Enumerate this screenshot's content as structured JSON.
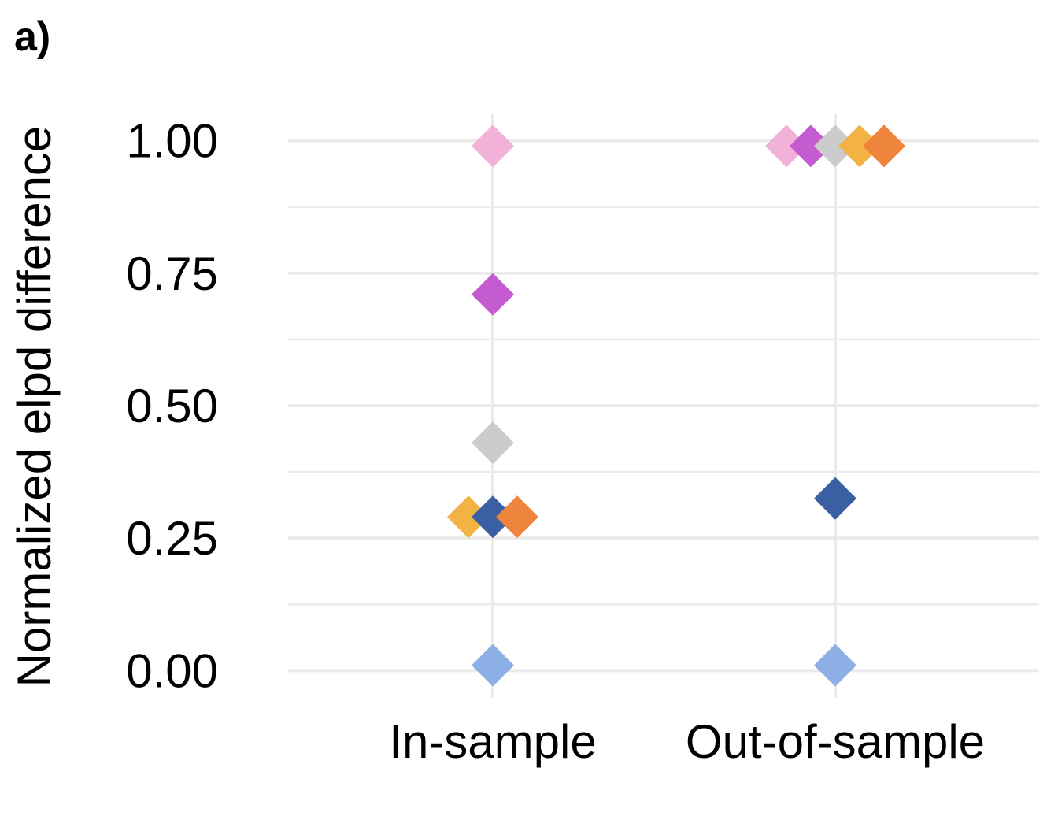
{
  "panel_label": "a)",
  "chart_data": {
    "type": "scatter",
    "title": "",
    "xlabel": "",
    "ylabel": "Normalized elpd difference",
    "categories": [
      "In-sample",
      "Out-of-sample"
    ],
    "ylim": [
      -0.05,
      1.05
    ],
    "yticks": [
      0.0,
      0.25,
      0.5,
      0.75,
      1.0
    ],
    "ytick_labels": [
      "0.00",
      "0.25",
      "0.50",
      "0.75",
      "1.00"
    ],
    "grid": true,
    "legend": "none",
    "marker": "diamond",
    "series": [
      {
        "color": "#f2b1d8",
        "values": [
          0.99,
          0.99
        ]
      },
      {
        "color": "#c45bd1",
        "values": [
          0.71,
          0.99
        ]
      },
      {
        "color": "#cccccc",
        "values": [
          0.43,
          0.99
        ]
      },
      {
        "color": "#f2b344",
        "values": [
          0.29,
          0.99
        ]
      },
      {
        "color": "#3a5fa3",
        "values": [
          0.29,
          0.325
        ]
      },
      {
        "color": "#ef853d",
        "values": [
          0.29,
          0.99
        ]
      },
      {
        "color": "#8eaee6",
        "values": [
          0.01,
          0.01
        ]
      }
    ]
  }
}
